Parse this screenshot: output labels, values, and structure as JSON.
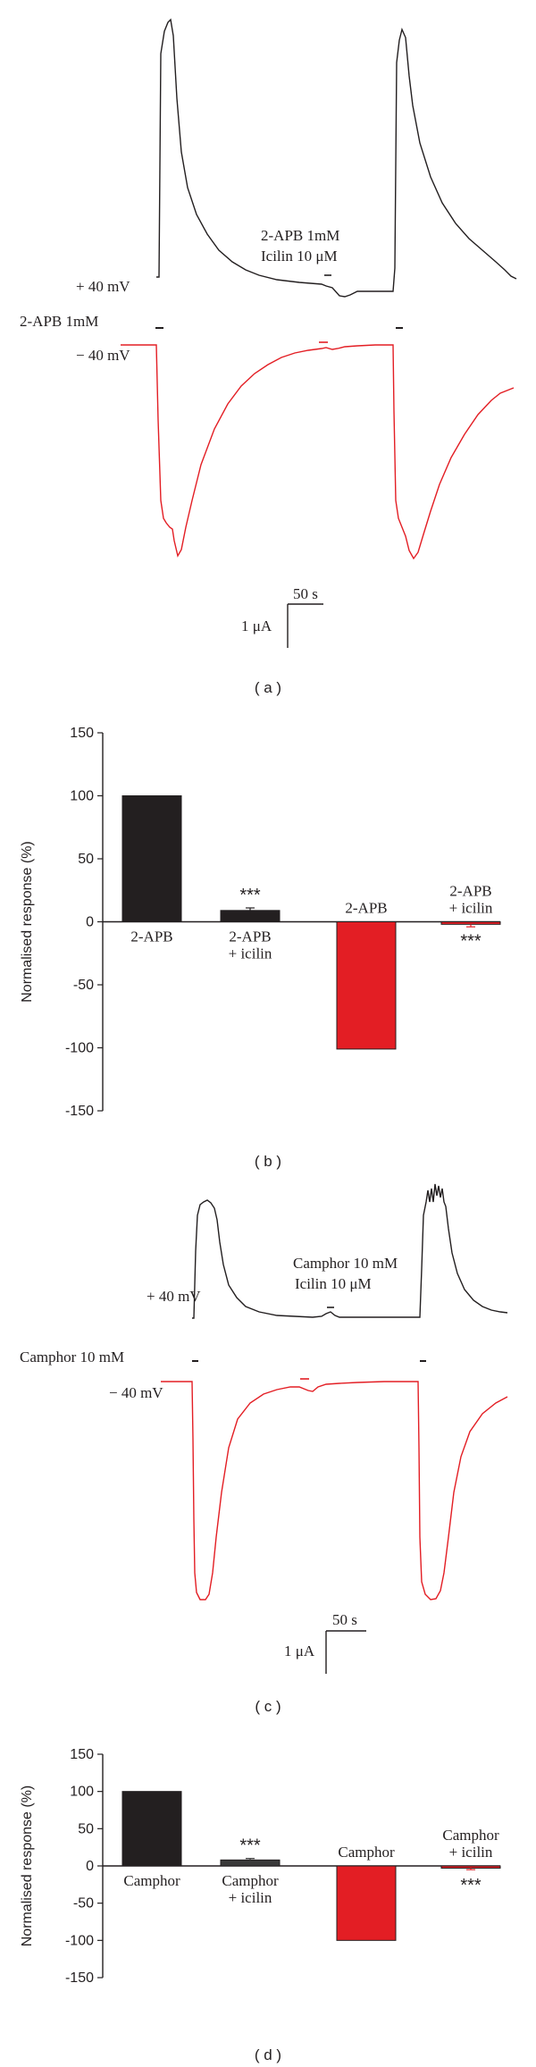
{
  "panel_labels": [
    "( a )",
    "( b )",
    "( c )",
    "( d )"
  ],
  "colors": {
    "depolarized": "#231f20",
    "hyperpolarized": "#e31e24",
    "gray_bar": "#3a3a3a"
  },
  "panel_a": {
    "label_plus": "+ 40 mV",
    "label_minus": "− 40 mV",
    "agonist_label": "2-APB 1mM",
    "mix_line1": "2-APB 1mM",
    "mix_line2": "Icilin 10 μM",
    "scale_time": "50 s",
    "scale_current": "1 μA"
  },
  "panel_c": {
    "label_plus": "+ 40 mV",
    "label_minus": "− 40 mV",
    "agonist_label": "Camphor 10 mM",
    "mix_line1": "Camphor 10 mM",
    "mix_line2": "Icilin 10 μM",
    "scale_time": "50 s",
    "scale_current": "1 μA"
  },
  "chart_data": [
    {
      "type": "bar",
      "panel": "b",
      "ylabel": "Normalised response (%)",
      "ylim": [
        -150,
        150
      ],
      "yticks": [
        150,
        100,
        50,
        0,
        -50,
        -100,
        -150
      ],
      "categories": [
        "2-APB",
        "2-APB\n+ icilin",
        "2-APB",
        "2-APB\n+ icilin"
      ],
      "values": [
        100,
        9,
        -101,
        -2
      ],
      "errors": [
        0,
        2,
        0,
        2
      ],
      "bar_colors": [
        "#231f20",
        "#231f20",
        "#e31e24",
        "#e31e24"
      ],
      "significance": [
        "",
        "***",
        "",
        "***"
      ],
      "significance_colors": [
        "",
        "#231f20",
        "",
        "#e31e24"
      ]
    },
    {
      "type": "bar",
      "panel": "d",
      "ylabel": "Normalised response (%)",
      "ylim": [
        -150,
        150
      ],
      "yticks": [
        150,
        100,
        50,
        0,
        -50,
        -100,
        -150
      ],
      "categories": [
        "Camphor",
        "Camphor\n+ icilin",
        "Camphor",
        "Camphor\n+ icilin"
      ],
      "values": [
        100,
        8,
        -100,
        -3
      ],
      "errors": [
        0,
        2,
        0,
        2
      ],
      "bar_colors": [
        "#231f20",
        "#3a3a3a",
        "#e31e24",
        "#e31e24"
      ],
      "significance": [
        "",
        "***",
        "",
        "***"
      ],
      "significance_colors": [
        "",
        "#231f20",
        "",
        "#e31e24"
      ]
    }
  ]
}
